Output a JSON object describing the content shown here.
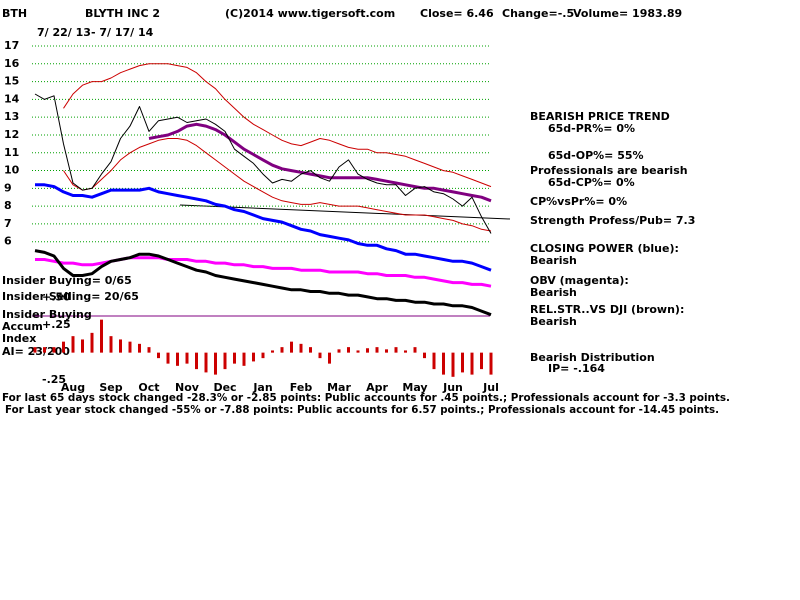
{
  "chart_data": [
    {
      "type": "line",
      "symbol": "BTH",
      "title": "BLYTH INC 2",
      "date_range": "7/ 22/ 13- 7/ 17/ 14",
      "copyright": "(C)2014 www.tigersoft.com",
      "close": "Close=  6.46",
      "change": "Change=-.5",
      "volume": "Volume= 1983.89",
      "categories": [
        null,
        null,
        null,
        null,
        "Aug",
        null,
        null,
        null,
        "Sep",
        null,
        null,
        null,
        "Oct",
        null,
        null,
        null,
        "Nov",
        null,
        null,
        null,
        "Dec",
        null,
        null,
        null,
        "Jan",
        null,
        null,
        null,
        "Feb",
        null,
        null,
        null,
        "Mar",
        null,
        null,
        null,
        "Apr",
        null,
        null,
        null,
        "May",
        null,
        null,
        null,
        "Jun",
        null,
        null,
        null,
        "Jul"
      ],
      "ylim": [
        1.6,
        17.9
      ],
      "yticks": [
        6,
        7,
        8,
        9,
        10,
        11,
        12,
        13,
        14,
        15,
        16,
        17
      ],
      "grid": true,
      "series": [
        {
          "name": "Upper band",
          "color": "#cc0000",
          "values": [
            null,
            null,
            null,
            13.5,
            14.3,
            14.8,
            15.0,
            15.0,
            15.2,
            15.5,
            15.7,
            15.9,
            16.0,
            16.0,
            16.0,
            15.9,
            15.8,
            15.5,
            15.0,
            14.6,
            14.0,
            13.5,
            13.0,
            12.6,
            12.3,
            12.0,
            11.7,
            11.5,
            11.4,
            11.6,
            11.8,
            11.7,
            11.5,
            11.3,
            11.2,
            11.2,
            11.0,
            11.0,
            10.9,
            10.8,
            10.6,
            10.4,
            10.2,
            10.0,
            9.9,
            9.7,
            9.5,
            9.3,
            9.1
          ]
        },
        {
          "name": "Lower band",
          "color": "#cc0000",
          "values": [
            null,
            null,
            null,
            10.0,
            9.2,
            8.9,
            9.0,
            9.5,
            10.0,
            10.6,
            11.0,
            11.3,
            11.5,
            11.7,
            11.8,
            11.8,
            11.7,
            11.4,
            11.0,
            10.6,
            10.2,
            9.8,
            9.4,
            9.1,
            8.8,
            8.5,
            8.3,
            8.2,
            8.1,
            8.1,
            8.2,
            8.1,
            8.0,
            8.0,
            8.0,
            7.9,
            7.8,
            7.7,
            7.6,
            7.5,
            7.5,
            7.5,
            7.4,
            7.3,
            7.2,
            7.0,
            6.9,
            6.7,
            6.6
          ]
        },
        {
          "name": "Moving average",
          "color": "#800080",
          "values": [
            null,
            null,
            null,
            null,
            null,
            null,
            null,
            null,
            null,
            null,
            null,
            null,
            11.8,
            11.9,
            12.0,
            12.2,
            12.5,
            12.6,
            12.5,
            12.3,
            12.0,
            11.6,
            11.2,
            10.9,
            10.6,
            10.3,
            10.1,
            10.0,
            9.9,
            9.8,
            9.7,
            9.6,
            9.6,
            9.6,
            9.6,
            9.6,
            9.5,
            9.4,
            9.3,
            9.2,
            9.1,
            9.0,
            9.0,
            8.9,
            8.8,
            8.7,
            8.6,
            8.5,
            8.3
          ]
        },
        {
          "name": "Price",
          "color": "#000000",
          "values": [
            14.3,
            14.0,
            14.2,
            11.5,
            9.3,
            8.9,
            9.0,
            9.8,
            10.5,
            11.8,
            12.5,
            13.6,
            12.2,
            12.8,
            12.9,
            13.0,
            12.7,
            12.8,
            12.9,
            12.6,
            12.2,
            11.2,
            10.8,
            10.4,
            9.8,
            9.3,
            9.5,
            9.4,
            9.8,
            10.0,
            9.6,
            9.4,
            10.2,
            10.6,
            9.8,
            9.5,
            9.3,
            9.2,
            9.2,
            8.6,
            9.0,
            9.1,
            8.8,
            8.7,
            8.4,
            8.0,
            8.5,
            7.4,
            6.46
          ]
        },
        {
          "name": "Closing Power",
          "color": "#0000ff",
          "values": [
            9.2,
            9.2,
            9.1,
            8.8,
            8.6,
            8.6,
            8.5,
            8.7,
            8.9,
            8.9,
            8.9,
            8.9,
            9.0,
            8.8,
            8.7,
            8.6,
            8.5,
            8.4,
            8.3,
            8.1,
            8.0,
            7.8,
            7.7,
            7.5,
            7.3,
            7.2,
            7.1,
            6.9,
            6.7,
            6.6,
            6.4,
            6.3,
            6.2,
            6.1,
            5.9,
            5.8,
            5.8,
            5.6,
            5.5,
            5.3,
            5.3,
            5.2,
            5.1,
            5.0,
            4.9,
            4.9,
            4.8,
            4.6,
            4.4
          ]
        },
        {
          "name": "OBV",
          "color": "#ff00ff",
          "values": [
            5.0,
            5.0,
            4.9,
            4.8,
            4.8,
            4.7,
            4.7,
            4.8,
            4.9,
            5.0,
            5.1,
            5.1,
            5.1,
            5.1,
            5.0,
            5.0,
            5.0,
            4.9,
            4.9,
            4.8,
            4.8,
            4.7,
            4.7,
            4.6,
            4.6,
            4.5,
            4.5,
            4.5,
            4.4,
            4.4,
            4.4,
            4.3,
            4.3,
            4.3,
            4.3,
            4.2,
            4.2,
            4.1,
            4.1,
            4.1,
            4.0,
            4.0,
            3.9,
            3.8,
            3.7,
            3.7,
            3.6,
            3.6,
            3.5
          ]
        },
        {
          "name": "Rel. Str. vs DJI",
          "color": "#000000",
          "values": [
            5.5,
            5.4,
            5.2,
            4.5,
            4.1,
            4.1,
            4.2,
            4.6,
            4.9,
            5.0,
            5.1,
            5.3,
            5.3,
            5.2,
            5.0,
            4.8,
            4.6,
            4.4,
            4.3,
            4.1,
            4.0,
            3.9,
            3.8,
            3.7,
            3.6,
            3.5,
            3.4,
            3.3,
            3.3,
            3.2,
            3.2,
            3.1,
            3.1,
            3.0,
            3.0,
            2.9,
            2.8,
            2.8,
            2.7,
            2.7,
            2.6,
            2.6,
            2.5,
            2.5,
            2.4,
            2.4,
            2.3,
            2.1,
            1.9
          ]
        }
      ],
      "annotations": [
        "BEARISH PRICE TREND",
        "65d-PR%= 0%",
        "65d-OP%= 55%",
        "Professionals are bearish",
        "65d-CP%= 0%",
        "CP%vsPr%=  0%",
        "Strength Profess/Pub= 7.3",
        "CLOSING POWER (blue):",
        "Bearish",
        "OBV (magenta):",
        "Bearish",
        "REL.STR..VS DJI (brown):",
        "Bearish",
        "Insider Buying= 0/65",
        "Insider Selling= 20/65"
      ],
      "footer": [
        "For last 65 days stock changed -28.3% or -2.85 points:  Public accounts for  .45 points.;  Professionals account for -3.3 points.",
        "For Last year stock changed -55% or -7.88 points:  Public accounts for  6.57 points.;  Professionals account for -14.45 points."
      ]
    },
    {
      "type": "bar",
      "color": "#cc0000",
      "ylim": [
        -0.34,
        0.57
      ],
      "yticks": [
        {
          "value": 0.5,
          "label": "+.50"
        },
        {
          "value": 0.25,
          "label": "+.25"
        },
        {
          "value": -0.25,
          "label": "-.25"
        }
      ],
      "values": [
        0.05,
        0.05,
        0.05,
        0.1,
        0.15,
        0.12,
        0.18,
        0.3,
        0.15,
        0.12,
        0.1,
        0.08,
        0.05,
        -0.05,
        -0.1,
        -0.12,
        -0.1,
        -0.15,
        -0.18,
        -0.2,
        -0.15,
        -0.1,
        -0.12,
        -0.08,
        -0.05,
        0.02,
        0.05,
        0.1,
        0.08,
        0.05,
        -0.05,
        -0.1,
        0.03,
        0.05,
        0.02,
        0.04,
        0.05,
        0.03,
        0.05,
        0.02,
        0.05,
        -0.05,
        -0.15,
        -0.2,
        -0.22,
        -0.18,
        -0.2,
        -0.15,
        -0.2
      ],
      "annotations": [
        "Insider Buying",
        "Accum",
        "Index",
        "AI= 23/200",
        "Bearish Distribution",
        "IP= -.164"
      ]
    }
  ]
}
